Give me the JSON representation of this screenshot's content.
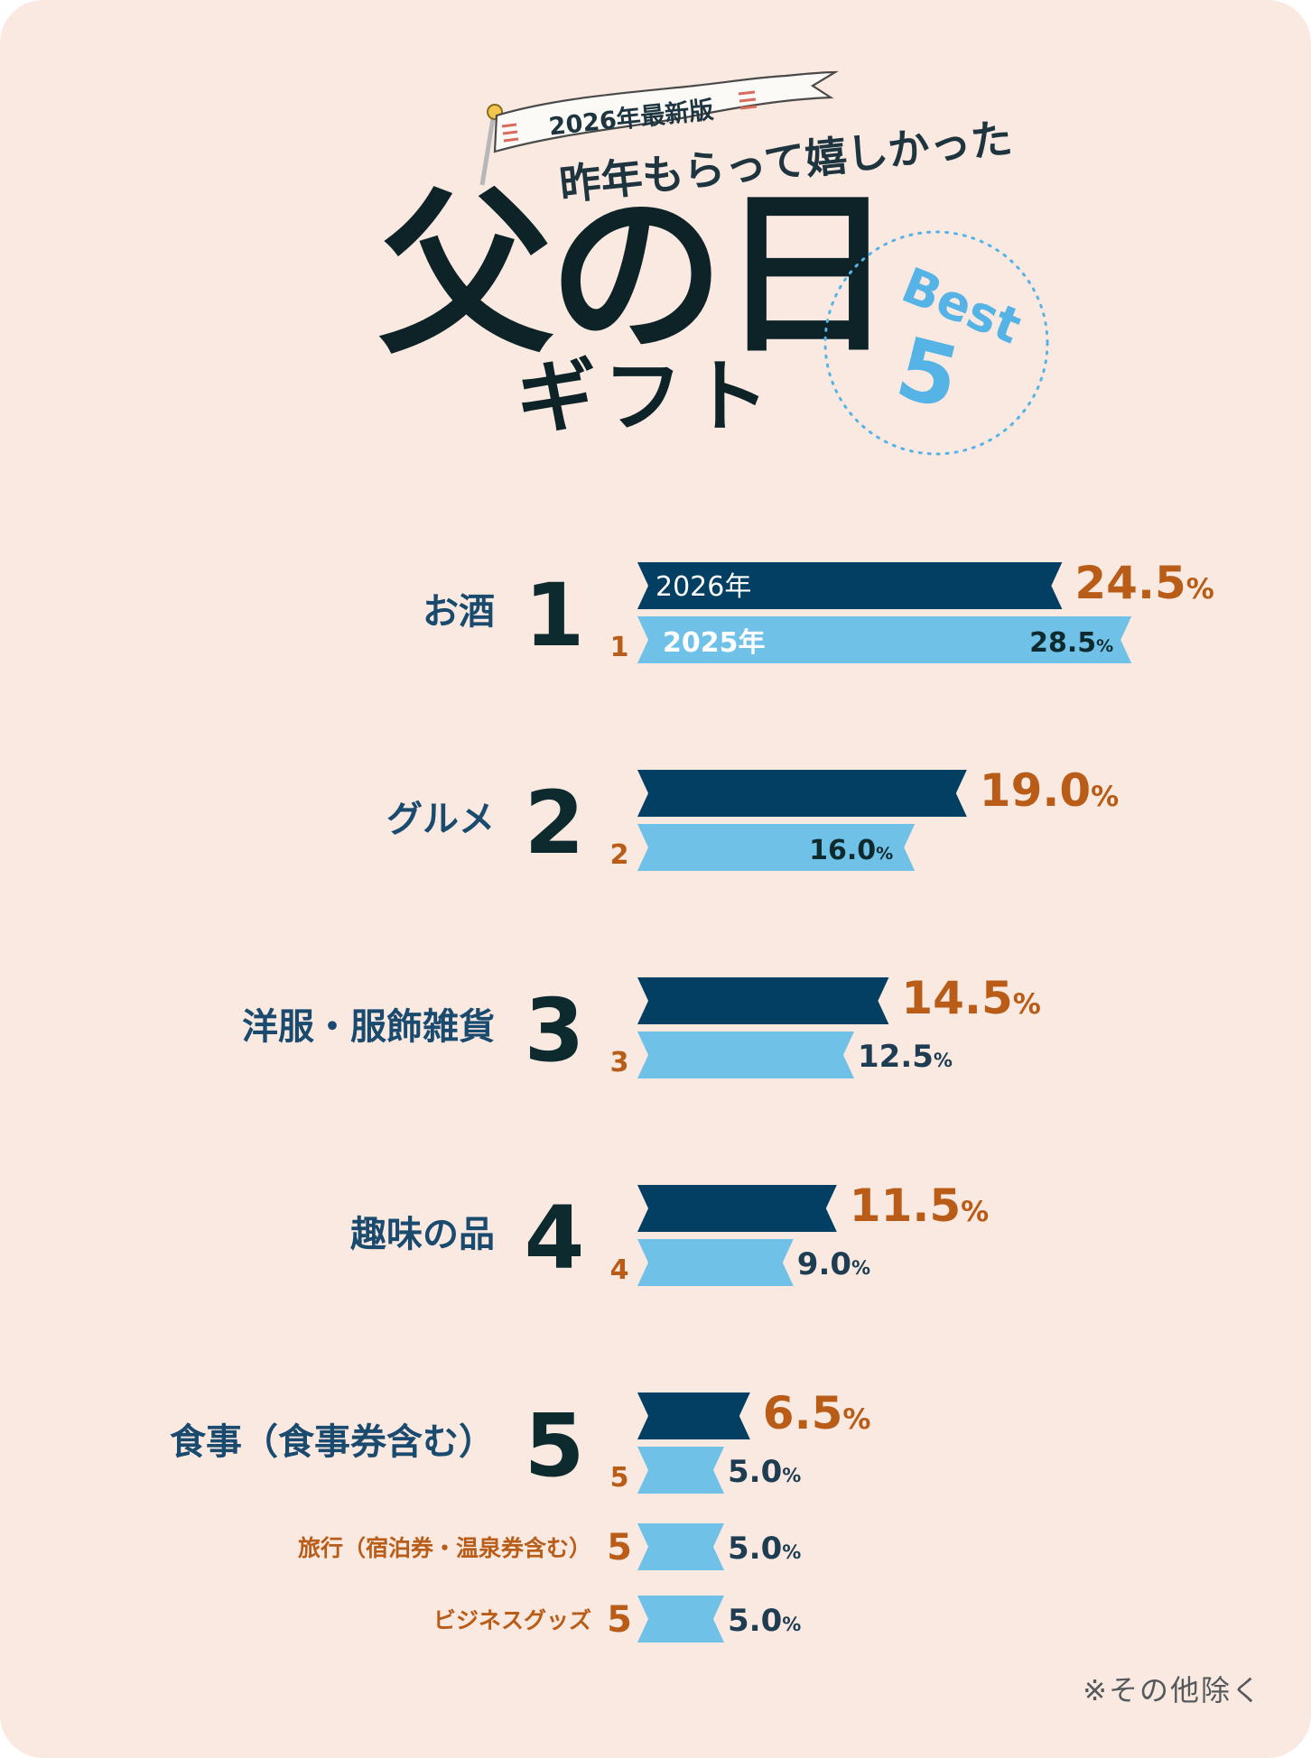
{
  "header": {
    "flag_text": "2026年最新版",
    "subtitle": "昨年もらって嬉しかった",
    "title": "父の日",
    "title_sub": "ギフト",
    "badge_word": "Best",
    "badge_number": "5"
  },
  "footnote": "※その他除く",
  "colors": {
    "bar_2026": "#033f63",
    "bar_2025": "#6fc1e8",
    "label_text": "#1a4a6e",
    "rank_text": "#0d2a2e",
    "accent_orange": "#b85c17",
    "dotted_circle": "#55b3e6"
  },
  "chart_data": {
    "type": "bar",
    "orientation": "horizontal",
    "unit": "%",
    "series": [
      {
        "name": "2026年",
        "values": [
          24.5,
          19.0,
          14.5,
          11.5,
          6.5
        ]
      },
      {
        "name": "2025年",
        "values": [
          28.5,
          16.0,
          12.5,
          9.0,
          5.0,
          5.0,
          5.0
        ]
      }
    ],
    "rows": [
      {
        "category": "お酒",
        "rank_2026": "1",
        "rank_2025": "1",
        "value_2026": 24.5,
        "value_2026_label": "24.5",
        "value_2025": 28.5,
        "value_2025_label": "28.5"
      },
      {
        "category": "グルメ",
        "rank_2026": "2",
        "rank_2025": "2",
        "value_2026": 19.0,
        "value_2026_label": "19.0",
        "value_2025": 16.0,
        "value_2025_label": "16.0"
      },
      {
        "category": "洋服・服飾雑貨",
        "rank_2026": "3",
        "rank_2025": "3",
        "value_2026": 14.5,
        "value_2026_label": "14.5",
        "value_2025": 12.5,
        "value_2025_label": "12.5"
      },
      {
        "category": "趣味の品",
        "rank_2026": "4",
        "rank_2025": "4",
        "value_2026": 11.5,
        "value_2026_label": "11.5",
        "value_2025": 9.0,
        "value_2025_label": "9.0"
      },
      {
        "category": "食事（食事券含む）",
        "rank_2026": "5",
        "rank_2025": "5",
        "value_2026": 6.5,
        "value_2026_label": "6.5",
        "value_2025": 5.0,
        "value_2025_label": "5.0"
      }
    ],
    "extra_2025_rows": [
      {
        "category": "旅行（宿泊券・温泉券含む）",
        "rank_2025": "5",
        "value_2025": 5.0,
        "value_2025_label": "5.0"
      },
      {
        "category": "ビジネスグッズ",
        "rank_2025": "5",
        "value_2025": 5.0,
        "value_2025_label": "5.0"
      }
    ],
    "percent_sign": "%"
  }
}
